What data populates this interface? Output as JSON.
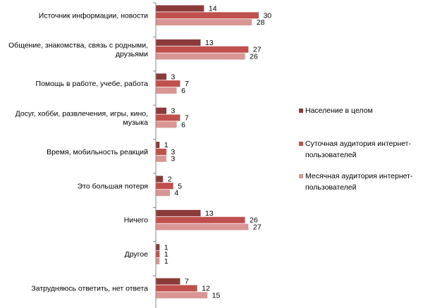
{
  "chart_data": {
    "type": "bar",
    "orientation": "horizontal",
    "categories": [
      [
        "Источник информации,  новости"
      ],
      [
        "Общение, знакомства, связь с родными,",
        "друзьями"
      ],
      [
        "Помощь в работе, учебе, работа"
      ],
      [
        "Досуг, хобби, развлечения, игры, кино,",
        "музыка"
      ],
      [
        "Время,  мобильность реакций"
      ],
      [
        "Это большая потеря"
      ],
      [
        "Ничего"
      ],
      [
        "Другое"
      ],
      [
        "Затрудняюсь ответить, нет ответа"
      ]
    ],
    "series": [
      {
        "name": [
          "Население в целом"
        ],
        "color": "#8b3a3a",
        "values": [
          14,
          13,
          3,
          3,
          1,
          2,
          13,
          1,
          7
        ]
      },
      {
        "name": [
          "Суточная аудитория интернет-",
          "пользователей"
        ],
        "color": "#c0504d",
        "values": [
          30,
          27,
          7,
          7,
          3,
          5,
          26,
          1,
          12
        ]
      },
      {
        "name": [
          "Месячная аудитория интернет-",
          "пользователей"
        ],
        "color": "#d99694",
        "values": [
          28,
          26,
          6,
          6,
          3,
          4,
          27,
          1,
          15
        ]
      }
    ],
    "xlim": [
      0,
      33
    ],
    "grid": false,
    "legend_position": "right"
  }
}
